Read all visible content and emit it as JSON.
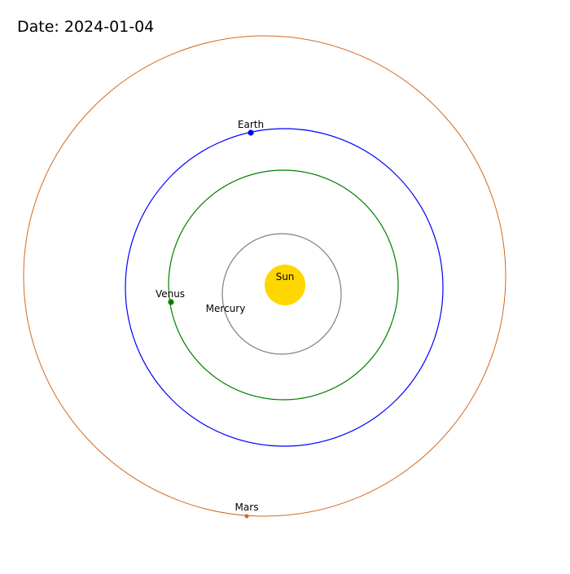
{
  "date_label": "Date: 2024-01-04",
  "sun": {
    "name": "Sun",
    "color": "#FFD700"
  },
  "planets": [
    {
      "name": "Mercury",
      "orbit_color": "#808080",
      "dot_color": "#808080",
      "show_dot": false
    },
    {
      "name": "Venus",
      "orbit_color": "#008000",
      "dot_color": "#008000",
      "show_dot": true
    },
    {
      "name": "Earth",
      "orbit_color": "#0000FF",
      "dot_color": "#0000FF",
      "show_dot": true
    },
    {
      "name": "Mars",
      "orbit_color": "#D2691E",
      "dot_color": "#D2691E",
      "show_dot": true
    }
  ]
}
